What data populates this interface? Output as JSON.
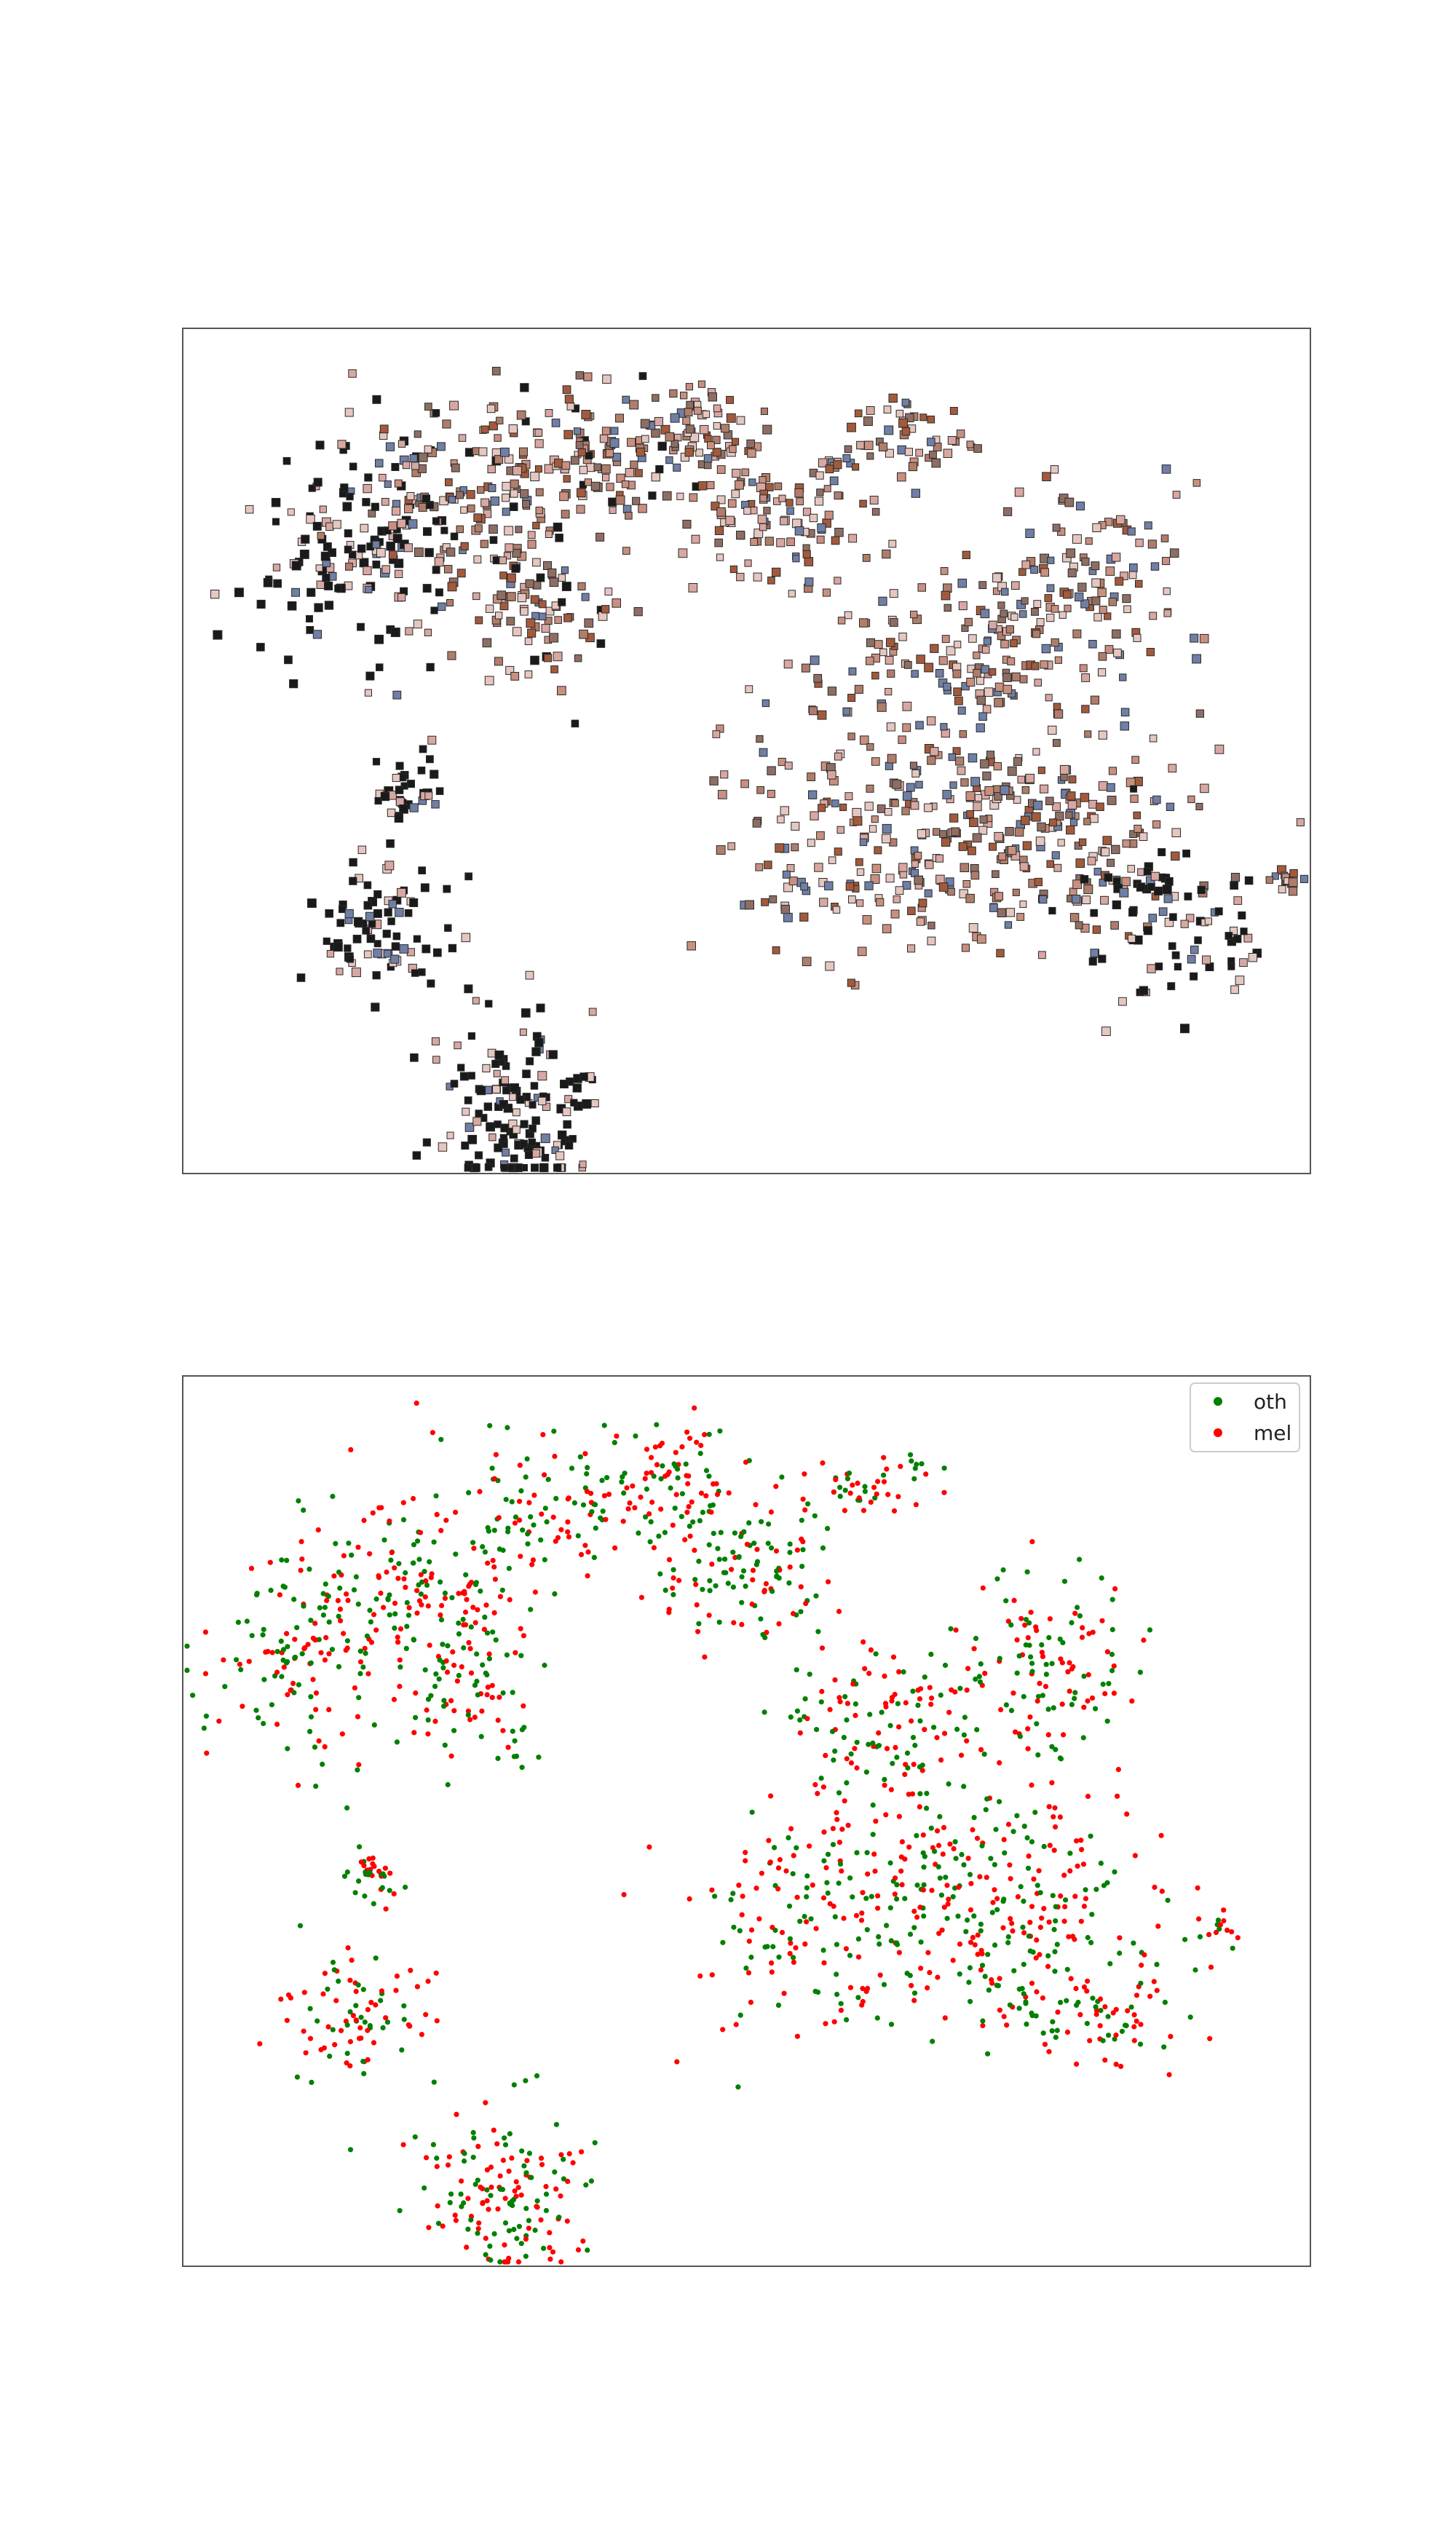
{
  "figure": {
    "panels": 2
  },
  "chart_data": [
    {
      "type": "scatter",
      "title": "",
      "subtitle": "",
      "xlabel": "",
      "ylabel": "",
      "axes_ticks_visible": false,
      "grid": false,
      "legend": null,
      "marker": "image-thumbnail",
      "marker_colors": [
        "#1a1a1a",
        "#8e6e64",
        "#b07d6a",
        "#c98f7f",
        "#a35a3c",
        "#d9a7a1",
        "#6f7fa5",
        "#e6c7c0"
      ],
      "xlim": [
        -60,
        60
      ],
      "ylim": [
        -50,
        50
      ],
      "clusters": [
        {
          "cx": -42,
          "cy": 22,
          "sx": 5.5,
          "sy": 7.5,
          "n": 130,
          "tone": "dark"
        },
        {
          "cx": -30,
          "cy": 30,
          "sx": 6.5,
          "sy": 6.5,
          "n": 170,
          "tone": "mixed"
        },
        {
          "cx": -23,
          "cy": 17,
          "sx": 4.5,
          "sy": 5.0,
          "n": 90,
          "tone": "mixed"
        },
        {
          "cx": -17,
          "cy": 35,
          "sx": 4.5,
          "sy": 4.0,
          "n": 90,
          "tone": "mixed"
        },
        {
          "cx": -5,
          "cy": 38,
          "sx": 4.0,
          "sy": 3.5,
          "n": 70,
          "tone": "warm"
        },
        {
          "cx": 3,
          "cy": 28,
          "sx": 5.5,
          "sy": 4.5,
          "n": 120,
          "tone": "warm"
        },
        {
          "cx": 17,
          "cy": 37,
          "sx": 3.5,
          "sy": 2.5,
          "n": 50,
          "tone": "warm"
        },
        {
          "cx": 23,
          "cy": 12,
          "sx": 8.0,
          "sy": 5.0,
          "n": 140,
          "tone": "warm"
        },
        {
          "cx": 37,
          "cy": 20,
          "sx": 5.5,
          "sy": 6.0,
          "n": 110,
          "tone": "warm"
        },
        {
          "cx": 14,
          "cy": -10,
          "sx": 8.5,
          "sy": 7.5,
          "n": 220,
          "tone": "warm"
        },
        {
          "cx": 33,
          "cy": -10,
          "sx": 8.0,
          "sy": 7.0,
          "n": 200,
          "tone": "warm"
        },
        {
          "cx": 44,
          "cy": -20,
          "sx": 6.0,
          "sy": 5.0,
          "n": 80,
          "tone": "dark"
        },
        {
          "cx": 57,
          "cy": -15,
          "sx": 1.2,
          "sy": 1.0,
          "n": 14,
          "tone": "warm"
        },
        {
          "cx": -36,
          "cy": -5,
          "sx": 1.8,
          "sy": 2.2,
          "n": 35,
          "tone": "dark"
        },
        {
          "cx": -39,
          "cy": -21,
          "sx": 3.8,
          "sy": 3.8,
          "n": 85,
          "tone": "dark"
        },
        {
          "cx": -24,
          "cy": -42,
          "sx": 4.5,
          "sy": 5.5,
          "n": 150,
          "tone": "dark"
        }
      ]
    },
    {
      "type": "scatter",
      "title": "",
      "subtitle": "",
      "xlabel": "",
      "ylabel": "",
      "axes_ticks_visible": false,
      "grid": false,
      "legend": {
        "position": "top-right",
        "entries": [
          {
            "label": "oth",
            "color": "#008000"
          },
          {
            "label": "mel",
            "color": "#ff0000"
          }
        ]
      },
      "xlim": [
        -60,
        60
      ],
      "ylim": [
        -50,
        50
      ],
      "series": [
        {
          "name": "oth",
          "color": "#008000",
          "share": 0.5
        },
        {
          "name": "mel",
          "color": "#ff0000",
          "share": 0.5
        }
      ],
      "clusters": [
        {
          "cx": -47,
          "cy": 18,
          "sx": 4.5,
          "sy": 6.5,
          "n": 130
        },
        {
          "cx": -35,
          "cy": 27,
          "sx": 6.0,
          "sy": 6.5,
          "n": 170
        },
        {
          "cx": -29,
          "cy": 15,
          "sx": 4.0,
          "sy": 5.0,
          "n": 80
        },
        {
          "cx": -20,
          "cy": 35,
          "sx": 4.5,
          "sy": 4.0,
          "n": 90
        },
        {
          "cx": -7,
          "cy": 38,
          "sx": 4.5,
          "sy": 3.5,
          "n": 80
        },
        {
          "cx": 0,
          "cy": 29,
          "sx": 5.0,
          "sy": 4.5,
          "n": 120
        },
        {
          "cx": 14,
          "cy": 38,
          "sx": 3.0,
          "sy": 2.0,
          "n": 45
        },
        {
          "cx": 16,
          "cy": 11,
          "sx": 7.0,
          "sy": 4.5,
          "n": 130
        },
        {
          "cx": 32,
          "cy": 18,
          "sx": 5.0,
          "sy": 5.5,
          "n": 110
        },
        {
          "cx": 10,
          "cy": -10,
          "sx": 8.5,
          "sy": 7.0,
          "n": 220
        },
        {
          "cx": 30,
          "cy": -10,
          "sx": 8.0,
          "sy": 7.0,
          "n": 200
        },
        {
          "cx": 38,
          "cy": -21,
          "sx": 6.0,
          "sy": 4.0,
          "n": 80
        },
        {
          "cx": 50,
          "cy": -12,
          "sx": 1.2,
          "sy": 1.0,
          "n": 14
        },
        {
          "cx": -40,
          "cy": -6,
          "sx": 1.6,
          "sy": 2.0,
          "n": 35
        },
        {
          "cx": -42,
          "cy": -22,
          "sx": 4.0,
          "sy": 3.8,
          "n": 85
        },
        {
          "cx": -26,
          "cy": -42,
          "sx": 4.5,
          "sy": 5.0,
          "n": 150
        }
      ]
    }
  ]
}
